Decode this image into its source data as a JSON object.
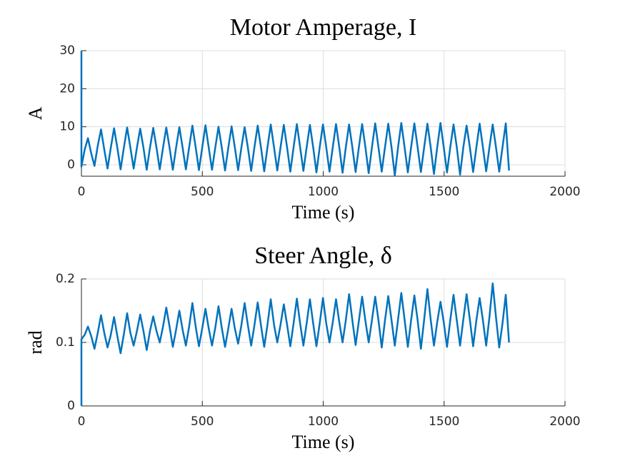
{
  "chart_data": [
    {
      "type": "line",
      "title": "Motor Amperage, I",
      "xlabel": "Time (s)",
      "ylabel": "A",
      "xlim": [
        0,
        2000
      ],
      "xticks": [
        0,
        500,
        1000,
        1500,
        2000
      ],
      "ylim": [
        -3,
        30
      ],
      "yticks": [
        0,
        10,
        20,
        30
      ],
      "grid": true,
      "x": [
        0,
        0,
        13.5,
        27,
        40.5,
        54,
        67.5,
        81,
        94.5,
        108,
        121.5,
        135,
        148.5,
        162,
        175.5,
        189,
        202.5,
        216,
        229.5,
        243,
        256.5,
        270,
        283.5,
        297,
        310.5,
        324,
        337.5,
        351,
        364.5,
        378,
        391.5,
        405,
        418.5,
        432,
        445.5,
        459,
        472.5,
        486,
        499.5,
        513,
        526.5,
        540,
        553.5,
        567,
        580.5,
        594,
        607.5,
        621,
        634.5,
        648,
        661.5,
        675,
        688.5,
        702,
        715.5,
        729,
        742.5,
        756,
        769.5,
        783,
        796.5,
        810,
        823.5,
        837,
        850.5,
        864,
        877.5,
        891,
        904.5,
        918,
        931.5,
        945,
        958.5,
        972,
        985.5,
        999,
        1012.5,
        1026,
        1039.5,
        1053,
        1066.5,
        1080,
        1093.5,
        1107,
        1120.5,
        1134,
        1147.5,
        1161,
        1174.5,
        1188,
        1201.5,
        1215,
        1228.5,
        1242,
        1255.5,
        1269,
        1282.5,
        1296,
        1309.5,
        1323,
        1336.5,
        1350,
        1363.5,
        1377,
        1390.5,
        1404,
        1417.5,
        1431,
        1444.5,
        1458,
        1471.5,
        1485,
        1498.5,
        1512,
        1525.5,
        1539,
        1552.5,
        1566,
        1579.5,
        1593,
        1606.5,
        1620,
        1633.5,
        1647,
        1660.5,
        1674,
        1687.5,
        1701,
        1714.5,
        1728,
        1741.5,
        1755,
        1768.5
      ],
      "series": [
        {
          "name": "Amperage",
          "color": "#0072bd",
          "values": [
            30,
            -0.5,
            4,
            7,
            3,
            -0.3,
            5,
            9.3,
            4,
            -1,
            4.5,
            9.6,
            4.5,
            -1.2,
            4.5,
            9.8,
            4.5,
            -1,
            4.5,
            9.5,
            4.5,
            -1.3,
            4.5,
            9.7,
            4.5,
            -1.2,
            4.5,
            9.8,
            4.5,
            -1.3,
            4.5,
            9.9,
            4.5,
            -1.2,
            4.6,
            10.3,
            4.6,
            -1.4,
            4.5,
            10.4,
            4.5,
            -1.3,
            4.5,
            10,
            4.5,
            -1.5,
            4.5,
            10.1,
            4.6,
            -1.4,
            4.5,
            9.9,
            4.5,
            -1.6,
            4.6,
            10.3,
            4.6,
            -1.7,
            4.6,
            10.6,
            4.6,
            -1.5,
            4.6,
            10.5,
            4.6,
            -1.8,
            4.6,
            10.7,
            4.6,
            -1.6,
            4.6,
            10.5,
            4.6,
            -2,
            4.6,
            10.6,
            4.6,
            -1.8,
            4.6,
            10.7,
            4.6,
            -2.1,
            4.6,
            10.6,
            4.6,
            -1.9,
            4.6,
            10.7,
            4.6,
            -2.2,
            4.6,
            10.9,
            4.6,
            -1.8,
            4.6,
            10.8,
            4.6,
            -2.8,
            4.6,
            11,
            4.6,
            -2,
            4.6,
            10.9,
            4.6,
            -1.9,
            4.6,
            10.8,
            4.6,
            -2.4,
            4.6,
            11,
            4.6,
            -2,
            4.6,
            10.6,
            4.6,
            -2.6,
            4.6,
            10.3,
            4.6,
            -1.9,
            4.6,
            10.8,
            4.6,
            -1.7,
            4.6,
            10.6,
            4.6,
            -1.8,
            4.6,
            10.9,
            -1.5
          ]
        }
      ]
    },
    {
      "type": "line",
      "title": "Steer Angle, δ",
      "xlabel": "Time (s)",
      "ylabel": "rad",
      "xlim": [
        0,
        2000
      ],
      "xticks": [
        0,
        500,
        1000,
        1500,
        2000
      ],
      "ylim": [
        0,
        0.2
      ],
      "yticks": [
        0,
        0.1,
        0.2
      ],
      "grid": true,
      "x": [
        0,
        0,
        13.5,
        27,
        40.5,
        54,
        67.5,
        81,
        94.5,
        108,
        121.5,
        135,
        148.5,
        162,
        175.5,
        189,
        202.5,
        216,
        229.5,
        243,
        256.5,
        270,
        283.5,
        297,
        310.5,
        324,
        337.5,
        351,
        364.5,
        378,
        391.5,
        405,
        418.5,
        432,
        445.5,
        459,
        472.5,
        486,
        499.5,
        513,
        526.5,
        540,
        553.5,
        567,
        580.5,
        594,
        607.5,
        621,
        634.5,
        648,
        661.5,
        675,
        688.5,
        702,
        715.5,
        729,
        742.5,
        756,
        769.5,
        783,
        796.5,
        810,
        823.5,
        837,
        850.5,
        864,
        877.5,
        891,
        904.5,
        918,
        931.5,
        945,
        958.5,
        972,
        985.5,
        999,
        1012.5,
        1026,
        1039.5,
        1053,
        1066.5,
        1080,
        1093.5,
        1107,
        1120.5,
        1134,
        1147.5,
        1161,
        1174.5,
        1188,
        1201.5,
        1215,
        1228.5,
        1242,
        1255.5,
        1269,
        1282.5,
        1296,
        1309.5,
        1323,
        1336.5,
        1350,
        1363.5,
        1377,
        1390.5,
        1404,
        1417.5,
        1431,
        1444.5,
        1458,
        1471.5,
        1485,
        1498.5,
        1512,
        1525.5,
        1539,
        1552.5,
        1566,
        1579.5,
        1593,
        1606.5,
        1620,
        1633.5,
        1647,
        1660.5,
        1674,
        1687.5,
        1701,
        1714.5,
        1728,
        1741.5,
        1755,
        1768.5
      ],
      "series": [
        {
          "name": "Steer angle",
          "color": "#0072bd",
          "values": [
            0,
            0.105,
            0.112,
            0.125,
            0.11,
            0.09,
            0.115,
            0.143,
            0.115,
            0.092,
            0.112,
            0.14,
            0.11,
            0.083,
            0.113,
            0.146,
            0.115,
            0.095,
            0.118,
            0.144,
            0.118,
            0.088,
            0.118,
            0.141,
            0.118,
            0.1,
            0.125,
            0.155,
            0.125,
            0.093,
            0.12,
            0.15,
            0.12,
            0.095,
            0.125,
            0.162,
            0.125,
            0.094,
            0.122,
            0.153,
            0.122,
            0.095,
            0.123,
            0.157,
            0.123,
            0.093,
            0.122,
            0.153,
            0.122,
            0.098,
            0.127,
            0.162,
            0.127,
            0.095,
            0.127,
            0.163,
            0.127,
            0.093,
            0.128,
            0.168,
            0.128,
            0.1,
            0.128,
            0.16,
            0.128,
            0.094,
            0.13,
            0.169,
            0.13,
            0.095,
            0.13,
            0.168,
            0.13,
            0.094,
            0.13,
            0.17,
            0.13,
            0.1,
            0.132,
            0.168,
            0.132,
            0.1,
            0.135,
            0.176,
            0.135,
            0.096,
            0.134,
            0.172,
            0.134,
            0.1,
            0.135,
            0.172,
            0.135,
            0.092,
            0.135,
            0.173,
            0.135,
            0.095,
            0.136,
            0.178,
            0.136,
            0.093,
            0.135,
            0.174,
            0.135,
            0.09,
            0.136,
            0.184,
            0.136,
            0.095,
            0.132,
            0.164,
            0.132,
            0.093,
            0.135,
            0.175,
            0.135,
            0.095,
            0.136,
            0.176,
            0.136,
            0.094,
            0.135,
            0.17,
            0.135,
            0.095,
            0.14,
            0.193,
            0.14,
            0.092,
            0.13,
            0.175,
            0.1
          ]
        }
      ]
    }
  ]
}
